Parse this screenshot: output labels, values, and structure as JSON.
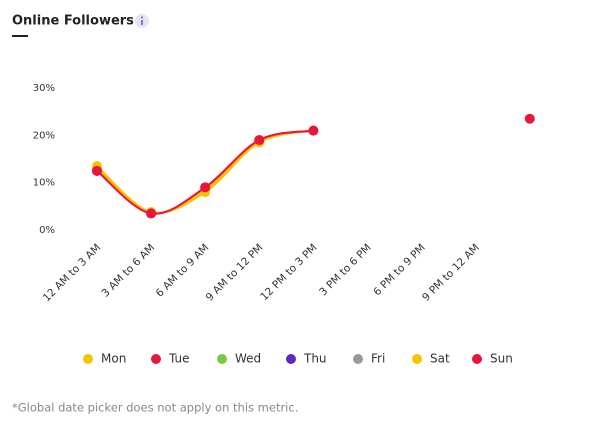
{
  "chart_data": {
    "type": "line",
    "title": "Online Followers",
    "categories": [
      "12 AM to 3 AM",
      "3 AM to 6 AM",
      "6 AM to 9 AM",
      "9 AM to 12 PM",
      "12 PM to 3 PM",
      "3 PM to 6 PM",
      "6 PM to 9 PM",
      "9 PM to 12 AM",
      null
    ],
    "series": [
      {
        "name": "Mon",
        "color": "#f5c400",
        "values": [
          13.5,
          3.8,
          8,
          18.5,
          21,
          null,
          null,
          null,
          null
        ]
      },
      {
        "name": "Tue",
        "color": "#e8163c",
        "values": [
          12.5,
          3.5,
          9,
          19,
          21,
          null,
          null,
          null,
          null
        ]
      },
      {
        "name": "Wed",
        "color": "#7ac943",
        "values": [
          null,
          null,
          null,
          null,
          null,
          null,
          null,
          null,
          null
        ]
      },
      {
        "name": "Thu",
        "color": "#5b2bbf",
        "values": [
          null,
          null,
          null,
          null,
          null,
          null,
          null,
          null,
          null
        ]
      },
      {
        "name": "Fri",
        "color": "#999999",
        "values": [
          null,
          null,
          null,
          null,
          null,
          null,
          null,
          null,
          null
        ]
      },
      {
        "name": "Sat",
        "color": "#f5c400",
        "values": [
          13,
          3.7,
          8.5,
          18.7,
          21,
          null,
          null,
          null,
          null
        ]
      },
      {
        "name": "Sun",
        "color": "#e8163c",
        "values": [
          12.5,
          3.5,
          9,
          19,
          21,
          null,
          null,
          null,
          23.5
        ]
      }
    ],
    "ylim": [
      0,
      30
    ],
    "yticks": [
      {
        "value": 0,
        "label": "0%"
      },
      {
        "value": 10,
        "label": "10%"
      },
      {
        "value": 20,
        "label": "20%"
      },
      {
        "value": 30,
        "label": "30%"
      }
    ],
    "grid": false,
    "legend": "bottom",
    "note": "*Global date picker does not apply on this metric."
  }
}
